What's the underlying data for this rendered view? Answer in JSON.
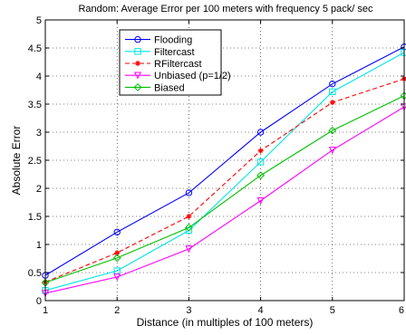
{
  "chart_data": {
    "type": "line",
    "title": "Random: Average Error per 100 meters with frequency 5 pack/ sec",
    "xlabel": "Distance (in multiples of 100 meters)",
    "ylabel": "Absolute Error",
    "xlim": [
      1,
      6
    ],
    "ylim": [
      0,
      5
    ],
    "x_ticks": [
      1,
      2,
      3,
      4,
      5,
      6
    ],
    "y_ticks": [
      0,
      0.5,
      1,
      1.5,
      2,
      2.5,
      3,
      3.5,
      4,
      4.5,
      5
    ],
    "grid": true,
    "legend_position": "top-center",
    "x": [
      1,
      2,
      3,
      4,
      5,
      6
    ],
    "series": [
      {
        "name": "Flooding",
        "values": [
          0.45,
          1.22,
          1.92,
          3.0,
          3.86,
          4.52
        ],
        "color": "#0000ff",
        "marker": "circle",
        "line": "solid"
      },
      {
        "name": "Filtercast",
        "values": [
          0.18,
          0.53,
          1.25,
          2.47,
          3.72,
          4.42
        ],
        "color": "#00e5e5",
        "marker": "square",
        "line": "solid"
      },
      {
        "name": "RFiltercast",
        "values": [
          0.33,
          0.85,
          1.5,
          2.67,
          3.53,
          3.95
        ],
        "color": "#ff0000",
        "marker": "star",
        "line": "dashed"
      },
      {
        "name": "Unbiased (p=1/2)",
        "values": [
          0.13,
          0.42,
          0.92,
          1.78,
          2.68,
          3.45
        ],
        "color": "#ff00ff",
        "marker": "triangle",
        "line": "solid"
      },
      {
        "name": "Biased",
        "values": [
          0.32,
          0.76,
          1.3,
          2.23,
          3.03,
          3.65
        ],
        "color": "#00c000",
        "marker": "diamond",
        "line": "solid"
      }
    ]
  }
}
